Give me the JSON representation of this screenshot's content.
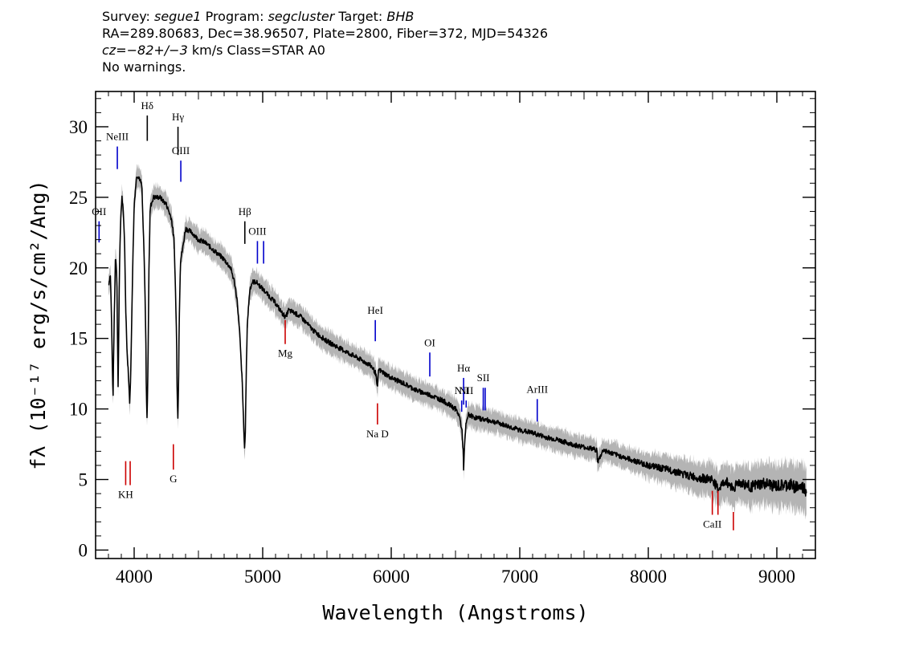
{
  "header": {
    "line1": {
      "survey_label": "Survey:",
      "survey": "segue1",
      "program_label": "Program:",
      "program": "segcluster",
      "target_label": "Target:",
      "target": "BHB"
    },
    "line2": "RA=289.80683, Dec=38.96507, Plate=2800, Fiber=372, MJD=54326",
    "line3": {
      "cz": "cz=−82+/−3",
      "rest": "km/s Class=STAR A0"
    },
    "line4": "No warnings."
  },
  "chart_data": {
    "type": "line",
    "xlabel": "Wavelength (Angstroms)",
    "ylabel": "fλ (10⁻¹⁷ erg/s/cm²/Ang)",
    "xlim": [
      3700,
      9300
    ],
    "ylim": [
      -0.6,
      32.5
    ],
    "x_ticks": [
      4000,
      5000,
      6000,
      7000,
      8000,
      9000
    ],
    "y_ticks": [
      0,
      5,
      10,
      15,
      20,
      25,
      30
    ],
    "series": [
      {
        "role": "flux",
        "color": "#000000",
        "x": [
          3800,
          3815,
          3825,
          3835,
          3845,
          3855,
          3865,
          3875,
          3885,
          3895,
          3905,
          3915,
          3925,
          3935,
          3945,
          3955,
          3965,
          3975,
          3985,
          4000,
          4020,
          4040,
          4060,
          4080,
          4090,
          4095,
          4100,
          4105,
          4110,
          4115,
          4125,
          4150,
          4200,
          4250,
          4290,
          4310,
          4320,
          4330,
          4335,
          4340,
          4345,
          4350,
          4360,
          4380,
          4400,
          4450,
          4500,
          4550,
          4600,
          4650,
          4700,
          4750,
          4780,
          4800,
          4820,
          4840,
          4850,
          4855,
          4861,
          4865,
          4870,
          4880,
          4900,
          4920,
          4950,
          5000,
          5050,
          5100,
          5150,
          5180,
          5200,
          5250,
          5300,
          5400,
          5500,
          5600,
          5700,
          5800,
          5850,
          5880,
          5893,
          5900,
          5950,
          6000,
          6100,
          6200,
          6300,
          6400,
          6500,
          6530,
          6550,
          6560,
          6563,
          6570,
          6580,
          6600,
          6650,
          6700,
          6800,
          6900,
          7000,
          7100,
          7200,
          7300,
          7400,
          7500,
          7600,
          7605,
          7650,
          7700,
          7800,
          7900,
          8000,
          8100,
          8200,
          8300,
          8400,
          8500,
          8542,
          8600,
          8662,
          8700,
          8800,
          8900,
          9000,
          9100,
          9200,
          9230
        ],
        "y": [
          18.8,
          19.5,
          16.0,
          10.5,
          16.5,
          21.0,
          19.5,
          11.5,
          19.5,
          23.5,
          25.0,
          24.0,
          22.0,
          17.0,
          14.0,
          12.5,
          10.5,
          13.0,
          18.5,
          24.5,
          26.6,
          26.4,
          25.8,
          20.0,
          15.5,
          11.0,
          9.5,
          11.5,
          15.0,
          20.0,
          24.3,
          25.0,
          25.0,
          24.5,
          23.5,
          22.0,
          19.0,
          15.0,
          11.0,
          9.5,
          11.5,
          16.0,
          20.5,
          21.5,
          22.8,
          22.5,
          22.0,
          21.8,
          21.4,
          21.0,
          20.6,
          20.0,
          19.0,
          17.8,
          15.5,
          12.0,
          9.5,
          7.8,
          7.2,
          8.5,
          11.5,
          16.0,
          18.5,
          19.0,
          19.0,
          18.5,
          18.0,
          17.5,
          16.8,
          16.5,
          17.0,
          16.8,
          16.5,
          15.5,
          14.8,
          14.3,
          13.8,
          13.3,
          13.0,
          12.5,
          11.3,
          12.8,
          12.5,
          12.2,
          11.8,
          11.3,
          11.0,
          10.6,
          10.0,
          9.5,
          8.5,
          7.0,
          5.8,
          7.2,
          8.8,
          9.6,
          9.4,
          9.3,
          9.1,
          8.8,
          8.5,
          8.3,
          8.0,
          7.8,
          7.5,
          7.3,
          7.1,
          6.2,
          7.1,
          6.9,
          6.6,
          6.3,
          6.0,
          5.8,
          5.6,
          5.3,
          5.1,
          5.0,
          4.3,
          4.9,
          4.4,
          4.8,
          4.5,
          4.7,
          4.5,
          4.6,
          4.4,
          4.2
        ]
      }
    ],
    "line_markers": [
      {
        "label": "OII",
        "x": 3727,
        "ymin": 21.8,
        "ymax": 23.3,
        "color": "#0000cc"
      },
      {
        "label": "NeIII",
        "x": 3869,
        "ymin": 27.0,
        "ymax": 28.6,
        "color": "#0000cc"
      },
      {
        "label": "KH",
        "x": 3934,
        "ymin": 4.6,
        "ymax": 6.3,
        "color": "#cc0000"
      },
      {
        "label": "",
        "x": 3969,
        "ymin": 4.6,
        "ymax": 6.3,
        "color": "#cc0000"
      },
      {
        "label": "Hδ",
        "x": 4102,
        "ymin": 29.0,
        "ymax": 30.8,
        "color": "#000000"
      },
      {
        "label": "G",
        "x": 4305,
        "ymin": 5.7,
        "ymax": 7.5,
        "color": "#cc0000"
      },
      {
        "label": "Hγ",
        "x": 4341,
        "ymin": 28.0,
        "ymax": 30.0,
        "color": "#000000"
      },
      {
        "label": "OIII",
        "x": 4363,
        "ymin": 26.1,
        "ymax": 27.6,
        "color": "#0000cc"
      },
      {
        "label": "Hβ",
        "x": 4861,
        "ymin": 21.7,
        "ymax": 23.3,
        "color": "#000000"
      },
      {
        "label": "OIII",
        "x": 4959,
        "ymin": 20.3,
        "ymax": 21.9,
        "color": "#0000cc"
      },
      {
        "label": "",
        "x": 5007,
        "ymin": 20.3,
        "ymax": 21.9,
        "color": "#0000cc"
      },
      {
        "label": "Mg",
        "x": 5175,
        "ymin": 14.6,
        "ymax": 16.3,
        "color": "#cc0000"
      },
      {
        "label": "Na D",
        "x": 5893,
        "ymin": 8.9,
        "ymax": 10.4,
        "color": "#cc0000"
      },
      {
        "label": "HeI",
        "x": 5876,
        "ymin": 14.8,
        "ymax": 16.3,
        "color": "#0000cc"
      },
      {
        "label": "OI",
        "x": 6300,
        "ymin": 12.3,
        "ymax": 14.0,
        "color": "#0000cc"
      },
      {
        "label": "NII",
        "x": 6548,
        "ymin": 9.8,
        "ymax": 10.6,
        "color": "#0000cc"
      },
      {
        "label": "Hα",
        "x": 6563,
        "ymin": 10.3,
        "ymax": 12.2,
        "color": "#0000cc"
      },
      {
        "label": "NII",
        "x": 6583,
        "ymin": 10.1,
        "ymax": 10.6,
        "color": "#0000cc"
      },
      {
        "label": "SII",
        "x": 6716,
        "ymin": 9.9,
        "ymax": 11.5,
        "color": "#0000cc"
      },
      {
        "label": "",
        "x": 6731,
        "ymin": 9.9,
        "ymax": 11.5,
        "color": "#0000cc"
      },
      {
        "label": "ArIII",
        "x": 7136,
        "ymin": 9.1,
        "ymax": 10.7,
        "color": "#0000cc"
      },
      {
        "label": "CaII",
        "x": 8498,
        "ymin": 2.5,
        "ymax": 4.2,
        "color": "#cc0000"
      },
      {
        "label": "",
        "x": 8542,
        "ymin": 2.5,
        "ymax": 4.2,
        "color": "#cc0000"
      },
      {
        "label": "",
        "x": 8662,
        "ymin": 1.4,
        "ymax": 2.7,
        "color": "#cc0000"
      }
    ],
    "grid": false,
    "colors": {
      "flux": "#000000",
      "error_band": "#b4b4b4",
      "emission": "#0000cc",
      "absorption": "#cc0000"
    }
  }
}
